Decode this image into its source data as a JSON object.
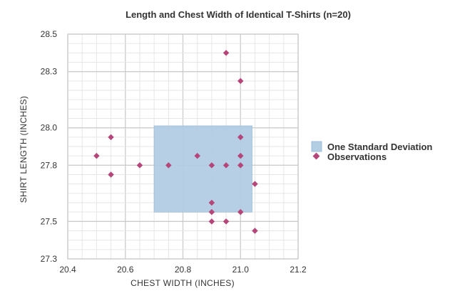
{
  "chart_data": {
    "type": "scatter",
    "title": "Length and Chest Width of Identical T-Shirts (n=20)",
    "xlabel": "CHEST WIDTH (INCHES)",
    "ylabel": "SHIRT LENGTH (INCHES)",
    "xlim": [
      20.4,
      21.2
    ],
    "ylim": [
      27.3,
      28.5
    ],
    "x_ticks": [
      "20.4",
      "20.6",
      "20.8",
      "21.0",
      "21.2"
    ],
    "y_ticks": [
      "27.3",
      "27.5",
      "27.8",
      "28.0",
      "28.3",
      "28.5"
    ],
    "grid": true,
    "legend_position": "right",
    "std_region": {
      "x": [
        20.7,
        21.04
      ],
      "y": [
        27.55,
        28.01
      ]
    },
    "series": [
      {
        "name": "Observations",
        "points": [
          [
            20.95,
            28.4
          ],
          [
            21.0,
            28.25
          ],
          [
            20.55,
            27.95
          ],
          [
            21.0,
            27.95
          ],
          [
            20.5,
            27.85
          ],
          [
            20.85,
            27.85
          ],
          [
            21.0,
            27.85
          ],
          [
            20.65,
            27.8
          ],
          [
            20.75,
            27.8
          ],
          [
            20.9,
            27.8
          ],
          [
            20.95,
            27.8
          ],
          [
            21.0,
            27.8
          ],
          [
            20.55,
            27.75
          ],
          [
            21.05,
            27.7
          ],
          [
            20.9,
            27.6
          ],
          [
            20.9,
            27.55
          ],
          [
            21.0,
            27.55
          ],
          [
            20.9,
            27.5
          ],
          [
            20.95,
            27.5
          ],
          [
            21.05,
            27.45
          ]
        ]
      }
    ],
    "legend": [
      {
        "label": "One Standard Deviation",
        "kind": "box"
      },
      {
        "label": "Observations",
        "kind": "marker"
      }
    ],
    "colors": {
      "marker": "#b5467a",
      "region": "#b3cde3",
      "region_stroke": "#9fbfdc",
      "grid": "#d9d9d9"
    }
  }
}
